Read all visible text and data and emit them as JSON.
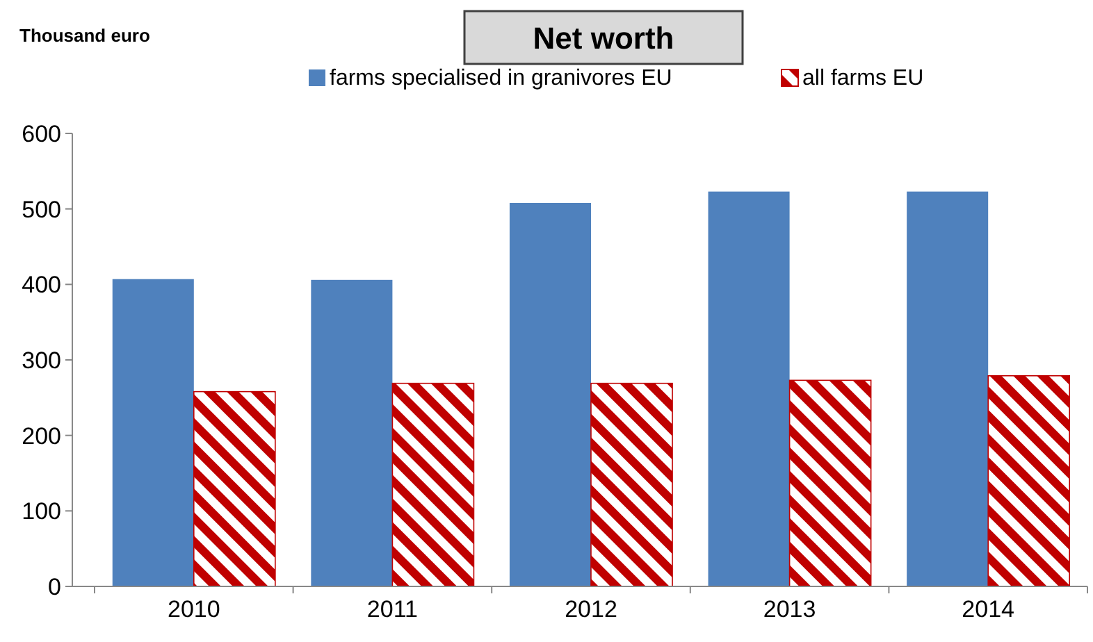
{
  "chart_data": {
    "type": "bar",
    "title": "Net worth",
    "ylabel": "Thousand euro",
    "categories": [
      "2010",
      "2011",
      "2012",
      "2013",
      "2014"
    ],
    "series": [
      {
        "name": "farms specialised in granivores  EU",
        "color": "#4f81bd",
        "values": [
          407,
          406,
          508,
          523,
          523
        ]
      },
      {
        "name": "all farms EU",
        "color": "#c00000",
        "values": [
          258,
          269,
          269,
          273,
          279
        ]
      }
    ],
    "ylim": [
      0,
      600
    ],
    "yticks": [
      0,
      100,
      200,
      300,
      400,
      500,
      600
    ],
    "grid": false,
    "legend": "top"
  }
}
